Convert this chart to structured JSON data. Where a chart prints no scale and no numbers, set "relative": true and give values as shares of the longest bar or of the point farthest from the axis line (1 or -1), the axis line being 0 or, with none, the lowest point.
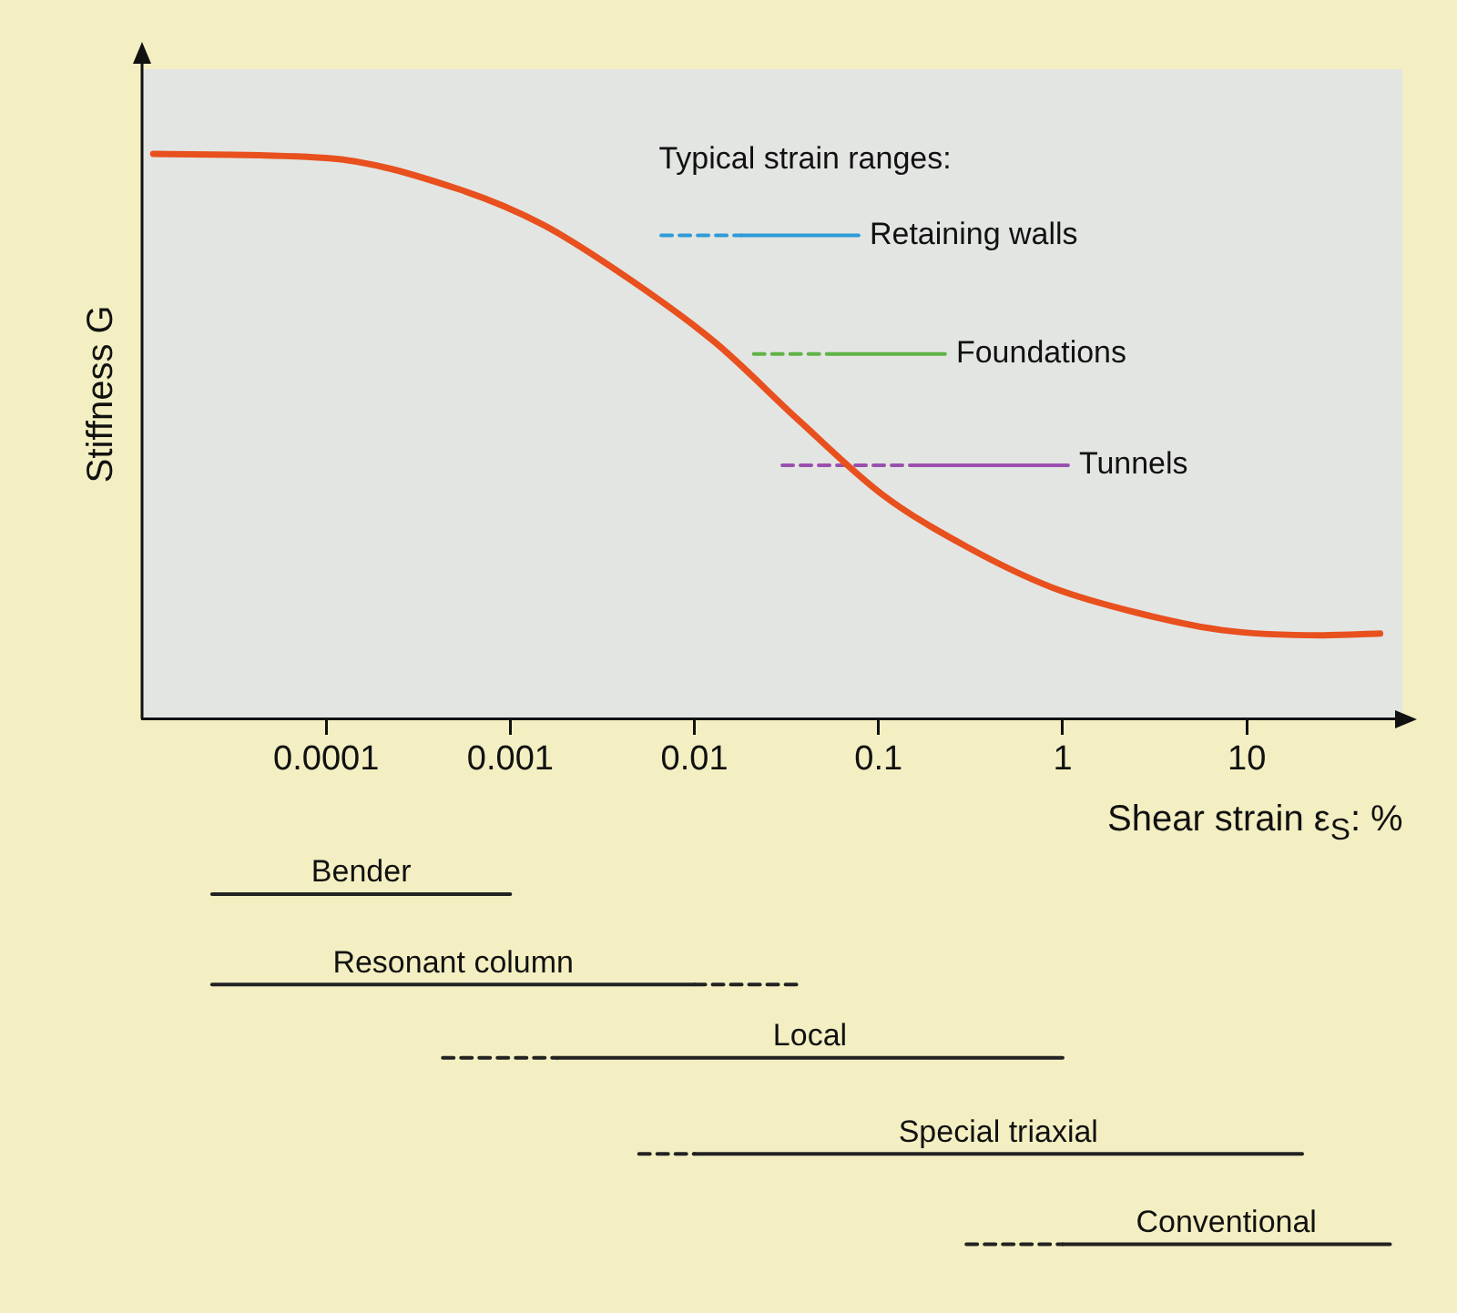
{
  "chart_data": {
    "type": "line",
    "xlabel": "Shear strain ε$_{S}$: %",
    "ylabel": "Stiffness G",
    "log": "x",
    "relative": true,
    "xlim": [
      1e-05,
      70
    ],
    "xticks": [
      0.0001,
      0.001,
      0.01,
      0.1,
      1,
      10
    ],
    "grid": false,
    "marker": "none",
    "annotations": [
      "Typical strain ranges:"
    ],
    "series": [
      {
        "color": "#e8501e",
        "x": [
          1.15e-05,
          0.0001,
          0.00052,
          0.0015,
          0.0045,
          0.013,
          0.037,
          0.105,
          0.3,
          0.87,
          2.6,
          7.4,
          26,
          53
        ],
        "values": [
          1.0,
          0.993,
          0.938,
          0.875,
          0.777,
          0.666,
          0.528,
          0.397,
          0.305,
          0.233,
          0.187,
          0.157,
          0.148,
          0.151
        ]
      },
      {
        "color": "#2f9bd8",
        "line_style": "dashed",
        "x": [
          0.0066,
          0.018
        ],
        "values": [
          0.856,
          0.856
        ]
      },
      {
        "name": "Retaining walls",
        "color": "#2f9bd8",
        "x": [
          0.018,
          0.078
        ],
        "values": [
          0.856,
          0.856
        ]
      },
      {
        "color": "#5fb346",
        "line_style": "dashed",
        "x": [
          0.021,
          0.06
        ],
        "values": [
          0.646,
          0.646
        ]
      },
      {
        "name": "Foundations",
        "color": "#5fb346",
        "x": [
          0.06,
          0.23
        ],
        "values": [
          0.646,
          0.646
        ]
      },
      {
        "color": "#9b4fae",
        "line_style": "dashed",
        "x": [
          0.03,
          0.16
        ],
        "values": [
          0.449,
          0.449
        ]
      },
      {
        "name": "Tunnels",
        "color": "#9b4fae",
        "x": [
          0.16,
          1.07
        ],
        "values": [
          0.449,
          0.449
        ]
      },
      {
        "name": "Bender",
        "color": "#222222",
        "x": [
          2.4e-05,
          0.001
        ],
        "values": [
          -0.31,
          -0.31
        ]
      },
      {
        "name": "Resonant column",
        "color": "#222222",
        "x": [
          2.4e-05,
          0.01
        ],
        "values": [
          -0.47,
          -0.47
        ]
      },
      {
        "color": "#222222",
        "line_style": "dashed",
        "x": [
          0.01,
          0.039
        ],
        "values": [
          -0.47,
          -0.47
        ]
      },
      {
        "color": "#222222",
        "line_style": "dashed",
        "x": [
          0.00043,
          0.0018
        ],
        "values": [
          -0.6,
          -0.6
        ]
      },
      {
        "name": "Local",
        "color": "#222222",
        "x": [
          0.0018,
          1
        ],
        "values": [
          -0.6,
          -0.6
        ]
      },
      {
        "color": "#222222",
        "line_style": "dashed",
        "x": [
          0.005,
          0.01
        ],
        "values": [
          -0.77,
          -0.77
        ]
      },
      {
        "name": "Special triaxial",
        "color": "#222222",
        "x": [
          0.01,
          20
        ],
        "values": [
          -0.77,
          -0.77
        ]
      },
      {
        "color": "#222222",
        "line_style": "dashed",
        "x": [
          0.3,
          1
        ],
        "values": [
          -0.93,
          -0.93
        ]
      },
      {
        "name": "Conventional",
        "color": "#222222",
        "x": [
          1,
          60
        ],
        "values": [
          -0.93,
          -0.93
        ]
      }
    ]
  }
}
